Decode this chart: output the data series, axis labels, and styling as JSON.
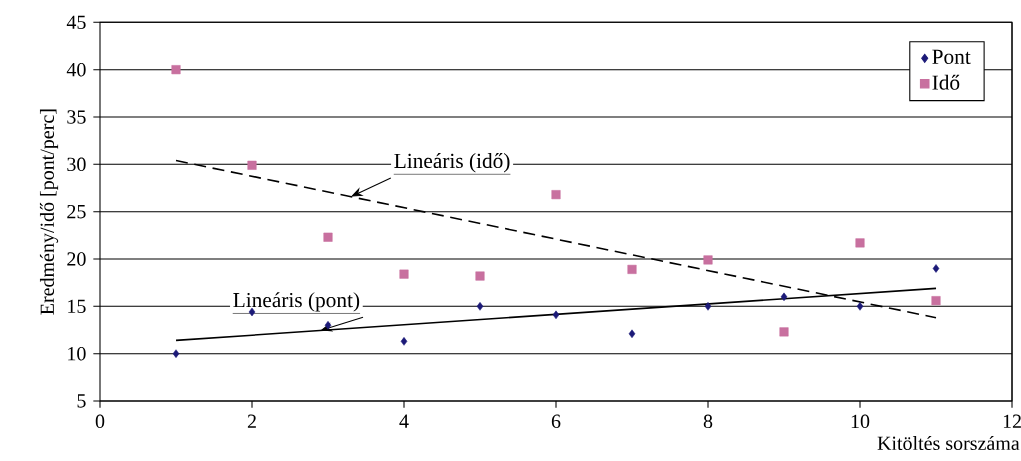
{
  "chart_data": {
    "type": "scatter",
    "xlabel": "Kitöltés sorszáma",
    "ylabel": "Eredmény/idő [pont/perc]",
    "xlim": [
      0,
      12
    ],
    "xticks": [
      0,
      2,
      4,
      6,
      8,
      10,
      12
    ],
    "ylim": [
      5,
      45
    ],
    "yticks": [
      5,
      10,
      15,
      20,
      25,
      30,
      35,
      40,
      45
    ],
    "grid": "y",
    "legend": "top right",
    "series": [
      {
        "name": "Pont",
        "color": "#1c1a78",
        "marker": "diamond",
        "x": [
          1,
          2,
          3,
          4,
          5,
          6,
          7,
          8,
          9,
          10,
          11
        ],
        "values": [
          10,
          14.4,
          13,
          11.3,
          15,
          14.1,
          12.1,
          15,
          16,
          15,
          19
        ]
      },
      {
        "name": "Idő",
        "color": "#c8709f",
        "marker": "square",
        "x": [
          1,
          2,
          3,
          4,
          5,
          6,
          7,
          8,
          9,
          10,
          11
        ],
        "values": [
          40,
          29.9,
          22.3,
          18.4,
          18.2,
          26.8,
          18.9,
          19.9,
          12.3,
          21.7,
          15.6
        ]
      },
      {
        "name": "Lineáris (pont)",
        "type": "line",
        "color": "#000000",
        "line_style": "solid",
        "marker": "none",
        "x": [
          1,
          11
        ],
        "values": [
          11.4,
          16.9
        ]
      },
      {
        "name": "Lineáris (idő)",
        "type": "line",
        "color": "#000000",
        "line_style": "dashed",
        "marker": "none",
        "x": [
          1,
          11
        ],
        "values": [
          30.4,
          13.8
        ]
      }
    ]
  }
}
